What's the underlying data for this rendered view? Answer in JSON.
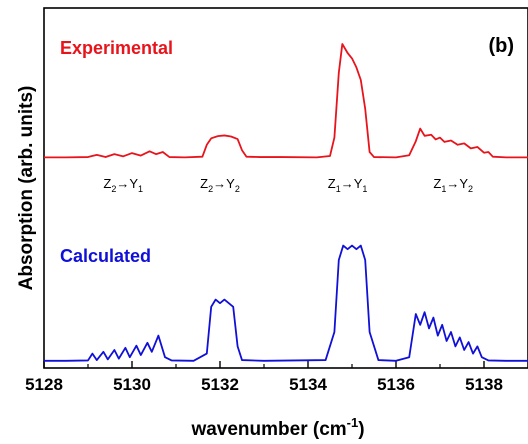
{
  "chart_data": {
    "type": "line",
    "panel_label": "(b)",
    "xlabel": "wavenumber (cm",
    "xlabel_sup": "-1",
    "xlabel_end": ")",
    "ylabel": "Absorption (arb. units)",
    "xlim": [
      5128,
      5139
    ],
    "ylim": [
      0,
      1
    ],
    "x_ticks": [
      5128,
      5130,
      5132,
      5134,
      5136,
      5138
    ],
    "grid": false,
    "series": [
      {
        "name": "Experimental",
        "color": "#e8141c",
        "baseline": 0.585,
        "points": [
          [
            5128.5,
            0.585
          ],
          [
            5129.0,
            0.586
          ],
          [
            5129.2,
            0.592
          ],
          [
            5129.4,
            0.586
          ],
          [
            5129.6,
            0.594
          ],
          [
            5129.8,
            0.588
          ],
          [
            5130.0,
            0.597
          ],
          [
            5130.2,
            0.59
          ],
          [
            5130.4,
            0.602
          ],
          [
            5130.55,
            0.594
          ],
          [
            5130.7,
            0.6
          ],
          [
            5130.85,
            0.586
          ],
          [
            5131.2,
            0.585
          ],
          [
            5131.6,
            0.587
          ],
          [
            5131.7,
            0.62
          ],
          [
            5131.8,
            0.638
          ],
          [
            5131.95,
            0.644
          ],
          [
            5132.1,
            0.646
          ],
          [
            5132.25,
            0.643
          ],
          [
            5132.4,
            0.636
          ],
          [
            5132.5,
            0.605
          ],
          [
            5132.6,
            0.587
          ],
          [
            5132.9,
            0.586
          ],
          [
            5133.4,
            0.586
          ],
          [
            5134.2,
            0.585
          ],
          [
            5134.5,
            0.589
          ],
          [
            5134.6,
            0.64
          ],
          [
            5134.7,
            0.82
          ],
          [
            5134.78,
            0.9
          ],
          [
            5134.9,
            0.875
          ],
          [
            5135.0,
            0.86
          ],
          [
            5135.1,
            0.835
          ],
          [
            5135.2,
            0.8
          ],
          [
            5135.3,
            0.72
          ],
          [
            5135.4,
            0.6
          ],
          [
            5135.5,
            0.586
          ],
          [
            5136.0,
            0.585
          ],
          [
            5136.3,
            0.591
          ],
          [
            5136.45,
            0.63
          ],
          [
            5136.55,
            0.665
          ],
          [
            5136.65,
            0.645
          ],
          [
            5136.8,
            0.648
          ],
          [
            5136.9,
            0.635
          ],
          [
            5137.0,
            0.64
          ],
          [
            5137.1,
            0.628
          ],
          [
            5137.25,
            0.632
          ],
          [
            5137.4,
            0.62
          ],
          [
            5137.55,
            0.624
          ],
          [
            5137.7,
            0.61
          ],
          [
            5137.85,
            0.614
          ],
          [
            5138.0,
            0.598
          ],
          [
            5138.1,
            0.6
          ],
          [
            5138.2,
            0.587
          ],
          [
            5138.5,
            0.585
          ],
          [
            5139.0,
            0.585
          ]
        ]
      },
      {
        "name": "Calculated",
        "color": "#1010d8",
        "baseline": 0.02,
        "points": [
          [
            5128.5,
            0.02
          ],
          [
            5129.0,
            0.021
          ],
          [
            5129.1,
            0.04
          ],
          [
            5129.2,
            0.022
          ],
          [
            5129.35,
            0.045
          ],
          [
            5129.45,
            0.024
          ],
          [
            5129.6,
            0.05
          ],
          [
            5129.7,
            0.026
          ],
          [
            5129.85,
            0.056
          ],
          [
            5129.95,
            0.03
          ],
          [
            5130.1,
            0.062
          ],
          [
            5130.2,
            0.036
          ],
          [
            5130.35,
            0.07
          ],
          [
            5130.45,
            0.045
          ],
          [
            5130.6,
            0.09
          ],
          [
            5130.75,
            0.03
          ],
          [
            5130.9,
            0.021
          ],
          [
            5131.4,
            0.02
          ],
          [
            5131.7,
            0.04
          ],
          [
            5131.8,
            0.17
          ],
          [
            5131.9,
            0.19
          ],
          [
            5132.0,
            0.18
          ],
          [
            5132.1,
            0.19
          ],
          [
            5132.2,
            0.18
          ],
          [
            5132.3,
            0.17
          ],
          [
            5132.4,
            0.06
          ],
          [
            5132.5,
            0.022
          ],
          [
            5133.0,
            0.02
          ],
          [
            5134.4,
            0.022
          ],
          [
            5134.6,
            0.1
          ],
          [
            5134.7,
            0.3
          ],
          [
            5134.8,
            0.34
          ],
          [
            5134.9,
            0.33
          ],
          [
            5135.0,
            0.34
          ],
          [
            5135.1,
            0.33
          ],
          [
            5135.2,
            0.34
          ],
          [
            5135.3,
            0.3
          ],
          [
            5135.4,
            0.1
          ],
          [
            5135.6,
            0.022
          ],
          [
            5136.0,
            0.02
          ],
          [
            5136.3,
            0.03
          ],
          [
            5136.45,
            0.15
          ],
          [
            5136.55,
            0.12
          ],
          [
            5136.65,
            0.155
          ],
          [
            5136.75,
            0.11
          ],
          [
            5136.85,
            0.14
          ],
          [
            5136.95,
            0.09
          ],
          [
            5137.05,
            0.12
          ],
          [
            5137.15,
            0.075
          ],
          [
            5137.25,
            0.1
          ],
          [
            5137.35,
            0.06
          ],
          [
            5137.45,
            0.085
          ],
          [
            5137.55,
            0.05
          ],
          [
            5137.65,
            0.072
          ],
          [
            5137.75,
            0.04
          ],
          [
            5137.85,
            0.06
          ],
          [
            5137.95,
            0.03
          ],
          [
            5138.1,
            0.021
          ],
          [
            5138.5,
            0.02
          ],
          [
            5139.0,
            0.02
          ]
        ]
      }
    ],
    "annotations": [
      {
        "from": "Z",
        "from_sub": "2",
        "arrow": "→",
        "to": "Y",
        "to_sub": "1",
        "x": 5129.8,
        "y": 0.5
      },
      {
        "from": "Z",
        "from_sub": "2",
        "arrow": "→",
        "to": "Y",
        "to_sub": "2",
        "x": 5132.0,
        "y": 0.5
      },
      {
        "from": "Z",
        "from_sub": "1",
        "arrow": "→",
        "to": "Y",
        "to_sub": "1",
        "x": 5134.9,
        "y": 0.5
      },
      {
        "from": "Z",
        "from_sub": "1",
        "arrow": "→",
        "to": "Y",
        "to_sub": "2",
        "x": 5137.3,
        "y": 0.5
      }
    ]
  }
}
